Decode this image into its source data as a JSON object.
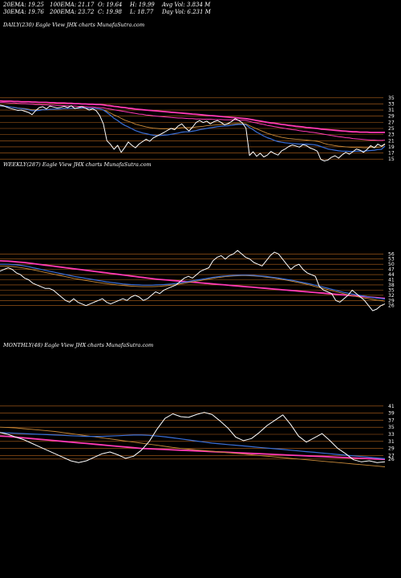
{
  "header": {
    "row1": [
      {
        "label": "20EMA: 19.25"
      },
      {
        "label": "100EMA: 21.17"
      },
      {
        "label": "O: 19.64"
      },
      {
        "label": "H: 19.99"
      },
      {
        "label": "Avg Vol: 3.834  M"
      }
    ],
    "row2": [
      {
        "label": "30EMA: 19.76"
      },
      {
        "label": "200EMA: 23.72"
      },
      {
        "label": "C: 19.98"
      },
      {
        "label": "L: 18.77"
      },
      {
        "label": "Day Vol: 6.231  M"
      }
    ]
  },
  "colors": {
    "background": "#000000",
    "guide": "#b5651d",
    "price": "#ffffff",
    "ema_fast": "#3a6fd8",
    "ema_slow": "#ff3ab4",
    "ema_mid": "#c88a3a"
  },
  "chart_data": [
    {
      "type": "line",
      "title": "DAILY(230) Eagle  View  JHX  charts MunafaSutra.com",
      "yticks": [
        15,
        17,
        19,
        21,
        23,
        25,
        27,
        29,
        31,
        33,
        35
      ],
      "ylim": [
        14,
        36
      ],
      "price": [
        32.6,
        32.4,
        31.9,
        31.5,
        31.2,
        30.9,
        31.0,
        30.6,
        30.2,
        29.5,
        30.8,
        31.8,
        32.1,
        31.4,
        32.3,
        32.0,
        31.7,
        31.9,
        32.2,
        31.8,
        32.4,
        31.5,
        31.8,
        32.1,
        31.6,
        31.0,
        31.4,
        30.8,
        29.2,
        26.5,
        21.0,
        19.8,
        18.2,
        19.5,
        17.2,
        18.8,
        20.6,
        19.5,
        18.7,
        19.9,
        20.7,
        21.5,
        20.8,
        21.9,
        22.5,
        23.1,
        23.7,
        24.4,
        25.0,
        24.6,
        25.8,
        26.5,
        25.2,
        24.2,
        25.4,
        26.9,
        27.6,
        26.9,
        27.4,
        26.5,
        27.2,
        27.6,
        27.0,
        26.2,
        26.6,
        27.3,
        28.2,
        27.6,
        26.8,
        25.1,
        16.2,
        17.4,
        15.9,
        16.9,
        15.7,
        16.3,
        17.5,
        16.8,
        16.3,
        17.7,
        18.3,
        19.1,
        19.6,
        19.3,
        18.9,
        19.7,
        19.4,
        18.6,
        18.2,
        17.6,
        14.9,
        14.4,
        14.7,
        15.6,
        16.1,
        15.3,
        16.4,
        17.2,
        16.6,
        17.4,
        18.3,
        17.9,
        17.2,
        18.2,
        19.4,
        18.7,
        19.9,
        19.2,
        19.98
      ],
      "ema20": [
        32.4,
        32.3,
        32.2,
        32.0,
        31.8,
        31.6,
        31.5,
        31.3,
        31.1,
        30.8,
        30.8,
        30.9,
        31.1,
        31.1,
        31.2,
        31.3,
        31.3,
        31.4,
        31.5,
        31.5,
        31.6,
        31.6,
        31.6,
        31.7,
        31.7,
        31.6,
        31.6,
        31.5,
        31.4,
        31.0,
        30.2,
        29.3,
        28.3,
        27.6,
        26.7,
        26.0,
        25.5,
        24.9,
        24.3,
        23.9,
        23.5,
        23.3,
        23.0,
        22.8,
        22.7,
        22.7,
        22.8,
        22.9,
        23.1,
        23.3,
        23.5,
        23.8,
        23.9,
        23.9,
        24.1,
        24.3,
        24.6,
        24.8,
        25.0,
        25.2,
        25.4,
        25.6,
        25.7,
        25.8,
        25.9,
        26.0,
        26.2,
        26.3,
        26.3,
        26.2,
        25.3,
        24.6,
        23.8,
        23.2,
        22.5,
        22.0,
        21.6,
        21.1,
        20.7,
        20.5,
        20.3,
        20.2,
        20.1,
        20.0,
        19.9,
        19.9,
        19.9,
        19.8,
        19.7,
        19.5,
        19.1,
        18.7,
        18.3,
        18.1,
        17.9,
        17.7,
        17.6,
        17.6,
        17.5,
        17.5,
        17.6,
        17.6,
        17.6,
        17.7,
        17.8,
        17.9,
        18.1,
        18.2,
        19.25
      ],
      "ema30": [
        32.3,
        32.2,
        32.1,
        32.0,
        31.9,
        31.7,
        31.6,
        31.5,
        31.3,
        31.1,
        31.1,
        31.1,
        31.2,
        31.2,
        31.3,
        31.3,
        31.3,
        31.4,
        31.4,
        31.5,
        31.5,
        31.5,
        31.5,
        31.6,
        31.6,
        31.5,
        31.5,
        31.5,
        31.4,
        31.1,
        30.6,
        30.0,
        29.4,
        28.9,
        28.3,
        27.7,
        27.3,
        26.9,
        26.4,
        26.1,
        25.8,
        25.5,
        25.3,
        25.1,
        25.0,
        24.9,
        24.9,
        24.9,
        25.0,
        25.0,
        25.1,
        25.3,
        25.3,
        25.3,
        25.3,
        25.5,
        25.6,
        25.7,
        25.9,
        26.0,
        26.1,
        26.2,
        26.3,
        26.3,
        26.4,
        26.5,
        26.6,
        26.6,
        26.6,
        26.5,
        25.9,
        25.4,
        24.9,
        24.4,
        23.9,
        23.4,
        23.1,
        22.7,
        22.4,
        22.1,
        21.9,
        21.7,
        21.6,
        21.5,
        21.4,
        21.3,
        21.2,
        21.1,
        21.0,
        20.8,
        20.5,
        20.1,
        19.8,
        19.6,
        19.4,
        19.2,
        19.1,
        19.0,
        18.9,
        18.8,
        18.8,
        18.8,
        18.7,
        18.7,
        18.8,
        18.8,
        18.9,
        19.0,
        19.76
      ],
      "ema100": [
        33.5,
        33.5,
        33.4,
        33.3,
        33.3,
        33.2,
        33.1,
        33.1,
        33.0,
        32.9,
        32.8,
        32.8,
        32.7,
        32.7,
        32.6,
        32.6,
        32.5,
        32.5,
        32.4,
        32.4,
        32.3,
        32.3,
        32.2,
        32.2,
        32.1,
        32.0,
        32.0,
        31.9,
        31.8,
        31.7,
        31.5,
        31.3,
        31.1,
        30.9,
        30.7,
        30.5,
        30.3,
        30.1,
        29.9,
        29.7,
        29.6,
        29.4,
        29.3,
        29.1,
        29.0,
        28.9,
        28.8,
        28.7,
        28.6,
        28.5,
        28.4,
        28.4,
        28.3,
        28.2,
        28.2,
        28.1,
        28.1,
        28.0,
        28.0,
        28.0,
        27.9,
        27.9,
        27.9,
        27.8,
        27.8,
        27.8,
        27.8,
        27.7,
        27.7,
        27.6,
        27.3,
        27.0,
        26.8,
        26.5,
        26.3,
        26.0,
        25.8,
        25.6,
        25.4,
        25.2,
        25.0,
        24.8,
        24.6,
        24.5,
        24.3,
        24.1,
        24.0,
        23.8,
        23.7,
        23.5,
        23.3,
        23.1,
        22.9,
        22.7,
        22.5,
        22.3,
        22.2,
        22.0,
        21.9,
        21.7,
        21.6,
        21.5,
        21.4,
        21.3,
        21.2,
        21.2,
        21.1,
        21.1,
        21.17
      ],
      "ema200": [
        34.0,
        33.9,
        33.9,
        33.9,
        33.8,
        33.8,
        33.7,
        33.7,
        33.7,
        33.6,
        33.6,
        33.5,
        33.5,
        33.5,
        33.4,
        33.4,
        33.3,
        33.3,
        33.3,
        33.2,
        33.2,
        33.1,
        33.1,
        33.0,
        33.0,
        32.9,
        32.9,
        32.8,
        32.8,
        32.7,
        32.5,
        32.4,
        32.2,
        32.1,
        31.9,
        31.8,
        31.6,
        31.5,
        31.3,
        31.2,
        31.1,
        31.0,
        30.9,
        30.8,
        30.7,
        30.6,
        30.5,
        30.4,
        30.3,
        30.2,
        30.1,
        30.0,
        29.9,
        29.8,
        29.7,
        29.6,
        29.5,
        29.4,
        29.3,
        29.2,
        29.1,
        29.0,
        28.9,
        28.8,
        28.7,
        28.6,
        28.5,
        28.4,
        28.3,
        28.2,
        28.0,
        27.8,
        27.6,
        27.4,
        27.2,
        27.0,
        26.8,
        26.7,
        26.5,
        26.3,
        26.2,
        26.0,
        25.9,
        25.7,
        25.6,
        25.5,
        25.3,
        25.2,
        25.1,
        25.0,
        24.8,
        24.7,
        24.6,
        24.5,
        24.4,
        24.3,
        24.2,
        24.1,
        24.0,
        23.9,
        23.9,
        23.8,
        23.8,
        23.8,
        23.7,
        23.7,
        23.7,
        23.7,
        23.72
      ]
    },
    {
      "type": "line",
      "title": "WEEKLY(287) Eagle  View  JHX  charts MunafaSutra.com",
      "yticks": [
        26,
        29,
        32,
        35,
        38,
        41,
        44,
        47,
        50,
        53,
        56
      ],
      "ylim": [
        24,
        58
      ],
      "price": [
        46,
        47,
        48,
        47,
        45,
        44,
        42,
        41,
        39,
        38,
        37,
        36,
        36,
        35,
        33,
        31,
        29,
        28,
        30,
        28,
        27,
        26,
        27,
        28,
        29,
        30,
        28,
        27,
        28,
        29,
        30,
        29,
        31,
        32,
        31,
        29,
        30,
        32,
        34,
        33,
        35,
        36,
        37,
        38,
        40,
        42,
        43,
        42,
        44,
        46,
        47,
        48,
        52,
        54,
        55,
        53,
        55,
        56,
        58,
        56,
        54,
        53,
        51,
        50,
        49,
        52,
        55,
        57,
        56,
        53,
        50,
        47,
        49,
        50,
        47,
        45,
        44,
        43,
        37,
        35,
        34,
        33,
        29,
        28,
        30,
        32,
        35,
        33,
        31,
        29,
        26,
        23,
        24,
        26,
        27
      ],
      "ema_blue": [
        50,
        50,
        50,
        49.8,
        49.6,
        49.4,
        49,
        48.6,
        48,
        47.5,
        47,
        46.5,
        46,
        45.5,
        45,
        44.5,
        44,
        43.5,
        43,
        42.6,
        42.2,
        41.8,
        41.4,
        41,
        40.6,
        40.2,
        39.8,
        39.5,
        39.2,
        38.9,
        38.6,
        38.4,
        38.2,
        38.1,
        38,
        37.9,
        37.9,
        37.9,
        38,
        38.1,
        38.2,
        38.4,
        38.6,
        38.9,
        39.2,
        39.6,
        40,
        40.4,
        40.8,
        41.2,
        41.6,
        42,
        42.4,
        42.7,
        43,
        43.2,
        43.4,
        43.5,
        43.6,
        43.7,
        43.7,
        43.6,
        43.5,
        43.3,
        43.1,
        42.9,
        42.6,
        42.3,
        42,
        41.6,
        41.2,
        40.8,
        40.4,
        39.9,
        39.4,
        38.9,
        38.4,
        37.9,
        37.3,
        36.7,
        36.1,
        35.5,
        34.9,
        34.3,
        33.7,
        33.2,
        32.7,
        32.3,
        31.9,
        31.5,
        31.1,
        30.7,
        30.4,
        30.1,
        29.8
      ],
      "ema_pink": [
        52,
        51.9,
        51.8,
        51.6,
        51.4,
        51.2,
        51,
        50.7,
        50.4,
        50.1,
        49.8,
        49.5,
        49.2,
        48.9,
        48.6,
        48.3,
        48,
        47.7,
        47.4,
        47.1,
        46.8,
        46.5,
        46.2,
        45.9,
        45.6,
        45.3,
        45,
        44.7,
        44.4,
        44.1,
        43.8,
        43.5,
        43.2,
        42.9,
        42.6,
        42.3,
        42,
        41.7,
        41.4,
        41.2,
        41,
        40.8,
        40.6,
        40.4,
        40.2,
        40,
        39.8,
        39.6,
        39.4,
        39.2,
        39,
        38.8,
        38.6,
        38.4,
        38.2,
        38,
        37.8,
        37.6,
        37.4,
        37.2,
        37,
        36.8,
        36.6,
        36.4,
        36.2,
        36,
        35.8,
        35.6,
        35.4,
        35.2,
        35,
        34.8,
        34.6,
        34.4,
        34.2,
        34,
        33.8,
        33.6,
        33.4,
        33.2,
        33,
        32.8,
        32.6,
        32.4,
        32.2,
        32,
        31.8,
        31.6,
        31.4,
        31.2,
        31,
        30.8,
        30.6,
        30.4,
        30.2
      ],
      "ema_mid": [
        49,
        49,
        48.9,
        48.7,
        48.4,
        48.1,
        47.7,
        47.3,
        46.8,
        46.3,
        45.8,
        45.3,
        44.8,
        44.3,
        43.8,
        43.3,
        42.8,
        42.3,
        41.8,
        41.4,
        41,
        40.6,
        40.2,
        39.8,
        39.4,
        39.1,
        38.8,
        38.5,
        38.2,
        37.9,
        37.7,
        37.5,
        37.3,
        37.2,
        37.1,
        37,
        37,
        37,
        37.1,
        37.2,
        37.4,
        37.6,
        37.9,
        38.2,
        38.6,
        39,
        39.4,
        39.8,
        40.2,
        40.6,
        41,
        41.4,
        41.8,
        42.2,
        42.5,
        42.8,
        43,
        43.2,
        43.3,
        43.4,
        43.4,
        43.3,
        43.2,
        43,
        42.8,
        42.5,
        42.2,
        41.9,
        41.5,
        41.1,
        40.7,
        40.3,
        39.8,
        39.3,
        38.8,
        38.3,
        37.7,
        37.1,
        36.5,
        35.9,
        35.3,
        34.7,
        34.1,
        33.5,
        32.9,
        32.3,
        31.8,
        31.3,
        30.8,
        30.4,
        30,
        29.6,
        29.2,
        28.9,
        28.6
      ]
    },
    {
      "type": "line",
      "title": "MONTHLY(48) Eagle  View  JHX  charts MunafaSutra.com",
      "yticks": [
        26,
        27,
        29,
        31,
        33,
        35,
        37,
        39,
        41
      ],
      "ylim": [
        23,
        43
      ],
      "price": [
        33.5,
        33,
        32.2,
        31.5,
        30.5,
        29.5,
        28.5,
        27.5,
        26.5,
        25.5,
        25,
        25.5,
        26.5,
        27.5,
        28,
        27.2,
        26.2,
        26.8,
        28.5,
        31,
        34.5,
        37.5,
        38.8,
        38,
        37.8,
        38.6,
        39.2,
        38.6,
        36.8,
        34.8,
        32.2,
        31.2,
        31.8,
        33.5,
        35.5,
        37,
        38.5,
        35.8,
        32.5,
        30.8,
        32,
        33.2,
        31.2,
        29,
        27.5,
        25.8,
        25.2,
        25.5,
        25,
        25.2
      ],
      "ema_blue": [
        33.5,
        33.4,
        33.3,
        33.2,
        33.1,
        33,
        32.9,
        32.8,
        32.7,
        32.6,
        32.5,
        32.4,
        32.4,
        32.4,
        32.5,
        32.6,
        32.7,
        32.8,
        32.8,
        32.7,
        32.5,
        32.3,
        32,
        31.7,
        31.4,
        31.1,
        30.8,
        30.5,
        30.3,
        30.1,
        29.9,
        29.7,
        29.5,
        29.3,
        29.1,
        28.9,
        28.7,
        28.5,
        28.3,
        28.1,
        27.9,
        27.7,
        27.5,
        27.3,
        27.1,
        26.9,
        26.7,
        26.5,
        26.3,
        26.1
      ],
      "ema_pink": [
        32.5,
        32.4,
        32.2,
        32,
        31.8,
        31.6,
        31.4,
        31.2,
        31,
        30.8,
        30.6,
        30.4,
        30.2,
        30,
        29.8,
        29.6,
        29.4,
        29.2,
        29,
        28.9,
        28.8,
        28.7,
        28.6,
        28.5,
        28.4,
        28.3,
        28.2,
        28.1,
        28,
        27.9,
        27.8,
        27.7,
        27.6,
        27.5,
        27.4,
        27.3,
        27.2,
        27.1,
        27,
        26.9,
        26.8,
        26.7,
        26.6,
        26.5,
        26.4,
        26.3,
        26.2,
        26.1,
        26,
        25.9
      ],
      "ema_mid": [
        35,
        34.9,
        34.8,
        34.6,
        34.4,
        34.2,
        34,
        33.8,
        33.5,
        33.2,
        32.9,
        32.6,
        32.3,
        32,
        31.7,
        31.4,
        31.1,
        30.8,
        30.5,
        30.2,
        29.9,
        29.6,
        29.3,
        29,
        28.8,
        28.6,
        28.4,
        28.2,
        28,
        27.8,
        27.6,
        27.4,
        27.2,
        27,
        26.8,
        26.6,
        26.4,
        26.2,
        26,
        25.8,
        25.6,
        25.4,
        25.2,
        25,
        24.8,
        24.6,
        24.4,
        24.2,
        24,
        23.8
      ]
    }
  ]
}
